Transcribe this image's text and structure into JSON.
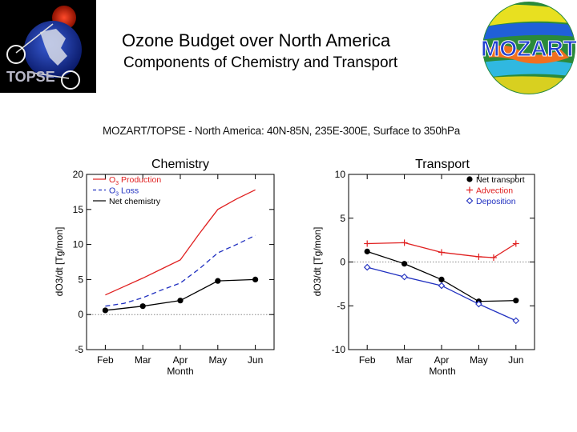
{
  "header": {
    "title": "Ozone Budget over North America",
    "subtitle": "Components of Chemistry and Transport",
    "left_logo_text": "TOPSE",
    "right_logo_text": "MOZART"
  },
  "figure_caption": "MOZART/TOPSE - North America: 40N-85N, 235E-300E, Surface to 350hPa",
  "colors": {
    "red": "#e02020",
    "blue": "#2030c0",
    "black": "#000000"
  },
  "chart_data": [
    {
      "type": "line",
      "title": "Chemistry",
      "xlabel": "Month",
      "ylabel": "dO3/dt [Tg/mon]",
      "categories": [
        "Feb",
        "Mar",
        "Apr",
        "May",
        "Jun"
      ],
      "ylim": [
        -5,
        20
      ],
      "yticks": [
        -5,
        0,
        5,
        10,
        15,
        20
      ],
      "xlim": [
        0,
        5
      ],
      "series": [
        {
          "name": "O3 Production",
          "color": "#e02020",
          "style": "solid",
          "marker": "none",
          "x": [
            0.5,
            1.0,
            1.5,
            2.0,
            2.5,
            3.0,
            3.5,
            4.0,
            4.5
          ],
          "y": [
            2.8,
            4.0,
            5.2,
            6.5,
            7.8,
            11.5,
            15.0,
            16.5,
            17.8
          ]
        },
        {
          "name": "O3 Loss",
          "color": "#2030c0",
          "style": "dashed",
          "marker": "none",
          "x": [
            0.5,
            1.0,
            1.5,
            2.0,
            2.5,
            3.0,
            3.5,
            4.0,
            4.5
          ],
          "y": [
            1.2,
            1.6,
            2.4,
            3.5,
            4.5,
            6.5,
            8.8,
            10.0,
            11.3
          ]
        },
        {
          "name": "Net chemistry",
          "color": "#000000",
          "style": "solid",
          "marker": "circle",
          "x": [
            0.5,
            1.5,
            2.5,
            3.5,
            4.5
          ],
          "y": [
            0.6,
            1.2,
            2.0,
            4.8,
            5.0
          ]
        }
      ],
      "legend": "top-left"
    },
    {
      "type": "line",
      "title": "Transport",
      "xlabel": "Month",
      "ylabel": "dO3/dt [Tg/mon]",
      "categories": [
        "Feb",
        "Mar",
        "Apr",
        "May",
        "Jun"
      ],
      "ylim": [
        -10,
        10
      ],
      "yticks": [
        -10,
        -5,
        0,
        5,
        10
      ],
      "xlim": [
        0,
        5
      ],
      "series": [
        {
          "name": "Net transport",
          "color": "#000000",
          "style": "solid",
          "marker": "circle",
          "x": [
            0.5,
            1.5,
            2.5,
            3.5,
            4.5
          ],
          "y": [
            1.2,
            -0.2,
            -2.0,
            -4.5,
            -4.4
          ]
        },
        {
          "name": "Advection",
          "color": "#e02020",
          "style": "solid",
          "marker": "plus",
          "x": [
            0.5,
            1.5,
            2.5,
            3.5,
            3.9,
            4.5
          ],
          "y": [
            2.1,
            2.2,
            1.1,
            0.6,
            0.5,
            2.1
          ]
        },
        {
          "name": "Deposition",
          "color": "#2030c0",
          "style": "solid",
          "marker": "diamond",
          "x": [
            0.5,
            1.5,
            2.5,
            3.5,
            4.5
          ],
          "y": [
            -0.6,
            -1.7,
            -2.7,
            -4.8,
            -6.7
          ]
        }
      ],
      "legend": "top-right"
    }
  ]
}
